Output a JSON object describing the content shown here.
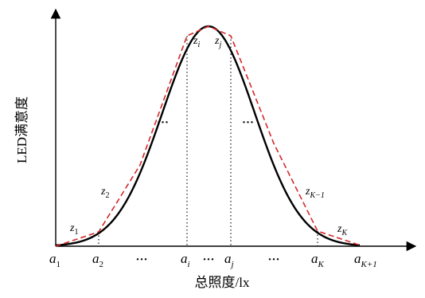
{
  "figure": {
    "ylabel": "LED满意度",
    "xlabel": "总照度/lx",
    "colors": {
      "axis": "#000000",
      "curve": "#000000",
      "approx": "#d62728",
      "guide": "#000000"
    },
    "ticks": [
      {
        "base": "a",
        "sub": "1"
      },
      {
        "base": "a",
        "sub": "2"
      },
      {
        "text": "···"
      },
      {
        "base": "a",
        "sub": "i"
      },
      {
        "text": "···"
      },
      {
        "base": "a",
        "sub": "j"
      },
      {
        "text": "···"
      },
      {
        "base": "a",
        "sub": "K"
      },
      {
        "base": "a",
        "sub": "K+1"
      }
    ],
    "segments": [
      {
        "base": "z",
        "sub": "1"
      },
      {
        "base": "z",
        "sub": "2"
      },
      {
        "base": "z",
        "sub": "i"
      },
      {
        "base": "z",
        "sub": "j"
      },
      {
        "base": "z",
        "sub": "K−1"
      },
      {
        "base": "z",
        "sub": "K"
      }
    ],
    "ellipses": [
      "···",
      "···"
    ]
  }
}
